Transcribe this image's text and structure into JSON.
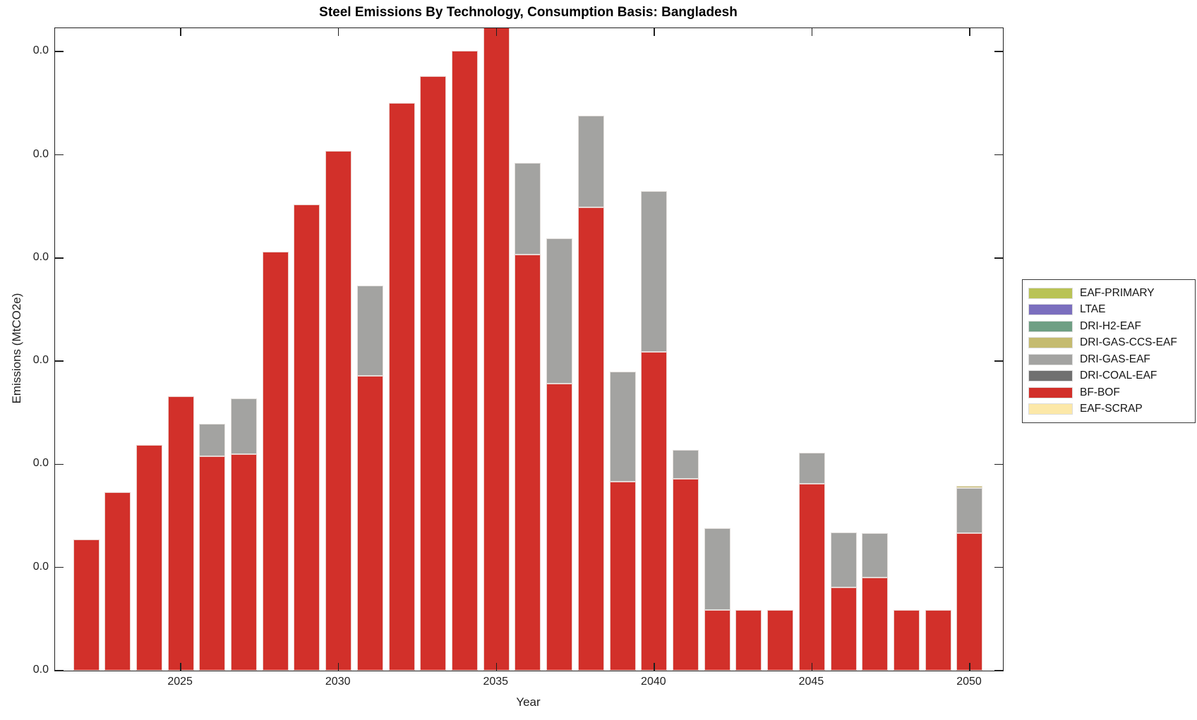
{
  "title": "Steel Emissions By Technology, Consumption Basis: Bangladesh",
  "axes": {
    "xlabel": "Year",
    "ylabel": "Emissions (MtCO2e)",
    "x_tick_years": [
      2025,
      2030,
      2035,
      2040,
      2045,
      2050
    ],
    "x_tick_labels": [
      "2025",
      "2030",
      "2035",
      "2040",
      "2045",
      "2050"
    ],
    "y_tick_labels": [
      "0.0",
      "0.0",
      "0.0",
      "0.0",
      "0.0",
      "0.0",
      "0.0"
    ]
  },
  "legend": {
    "items": [
      {
        "label": "EAF-PRIMARY",
        "color": "#b9c356"
      },
      {
        "label": "LTAE",
        "color": "#7b6fbe"
      },
      {
        "label": "DRI-H2-EAF",
        "color": "#6f9f84"
      },
      {
        "label": "DRI-GAS-CCS-EAF",
        "color": "#c5bb70"
      },
      {
        "label": "DRI-GAS-EAF",
        "color": "#a3a3a1"
      },
      {
        "label": "DRI-COAL-EAF",
        "color": "#707070"
      },
      {
        "label": "BF-BOF",
        "color": "#d2302a"
      },
      {
        "label": "EAF-SCRAP",
        "color": "#fce8a8"
      }
    ]
  },
  "chart_data": {
    "type": "bar",
    "stacked": true,
    "title": "Steel Emissions By Technology, Consumption Basis: Bangladesh",
    "xlabel": "Year",
    "ylabel": "Emissions (MtCO2e)",
    "grid": false,
    "legend_position": "right-outside",
    "value_units": "relative units: 1.0 = one y-axis tick interval (all y tick labels display as 0.0)",
    "ylim_units": [
      0,
      6.23
    ],
    "note_2035": "2035 bar is clipped by the top of the axes",
    "x": [
      2022,
      2023,
      2024,
      2025,
      2026,
      2027,
      2028,
      2029,
      2030,
      2031,
      2032,
      2033,
      2034,
      2035,
      2036,
      2037,
      2038,
      2039,
      2040,
      2041,
      2042,
      2043,
      2044,
      2045,
      2046,
      2047,
      2048,
      2049,
      2050
    ],
    "series": [
      {
        "name": "EAF-SCRAP",
        "color": "#fce8a8",
        "values": [
          0,
          0,
          0,
          0,
          0,
          0,
          0,
          0,
          0,
          0,
          0,
          0,
          0,
          0,
          0,
          0,
          0,
          0,
          0,
          0,
          0,
          0,
          0,
          0,
          0,
          0,
          0,
          0,
          0
        ]
      },
      {
        "name": "BF-BOF",
        "color": "#d2302a",
        "values": [
          1.27,
          1.73,
          2.19,
          2.66,
          2.08,
          2.1,
          4.06,
          4.52,
          5.04,
          2.86,
          5.5,
          5.76,
          6.01,
          6.3,
          4.03,
          2.78,
          4.49,
          1.83,
          3.09,
          1.86,
          0.59,
          0.59,
          0.59,
          1.81,
          0.81,
          0.9,
          0.59,
          0.59,
          1.33
        ]
      },
      {
        "name": "DRI-COAL-EAF",
        "color": "#707070",
        "values": [
          0,
          0,
          0,
          0,
          0,
          0,
          0,
          0,
          0,
          0,
          0,
          0,
          0,
          0,
          0,
          0,
          0,
          0,
          0,
          0,
          0,
          0,
          0,
          0,
          0,
          0,
          0,
          0,
          0
        ]
      },
      {
        "name": "DRI-GAS-EAF",
        "color": "#a3a3a1",
        "values": [
          0,
          0,
          0,
          0,
          0.31,
          0.54,
          0,
          0,
          0,
          0.87,
          0,
          0,
          0,
          0,
          0.89,
          1.41,
          0.89,
          1.07,
          1.56,
          0.28,
          0.79,
          0,
          0,
          0.3,
          0.53,
          0.43,
          0,
          0,
          0.44
        ]
      },
      {
        "name": "DRI-GAS-CCS-EAF",
        "color": "#c5bb70",
        "values": [
          0,
          0,
          0,
          0,
          0,
          0,
          0,
          0,
          0,
          0,
          0,
          0,
          0,
          0,
          0,
          0,
          0,
          0,
          0,
          0,
          0,
          0,
          0,
          0,
          0,
          0,
          0,
          0,
          0.02
        ]
      },
      {
        "name": "DRI-H2-EAF",
        "color": "#6f9f84",
        "values": [
          0,
          0,
          0,
          0,
          0,
          0,
          0,
          0,
          0,
          0,
          0,
          0,
          0,
          0,
          0,
          0,
          0,
          0,
          0,
          0,
          0,
          0,
          0,
          0,
          0,
          0,
          0,
          0,
          0
        ]
      },
      {
        "name": "LTAE",
        "color": "#7b6fbe",
        "values": [
          0,
          0,
          0,
          0,
          0,
          0,
          0,
          0,
          0,
          0,
          0,
          0,
          0,
          0,
          0,
          0,
          0,
          0,
          0,
          0,
          0,
          0,
          0,
          0,
          0,
          0,
          0,
          0,
          0
        ]
      },
      {
        "name": "EAF-PRIMARY",
        "color": "#b9c356",
        "values": [
          0,
          0,
          0,
          0,
          0,
          0,
          0,
          0,
          0,
          0,
          0,
          0,
          0,
          0,
          0,
          0,
          0,
          0,
          0,
          0,
          0,
          0,
          0,
          0,
          0,
          0,
          0,
          0,
          0
        ]
      }
    ]
  }
}
